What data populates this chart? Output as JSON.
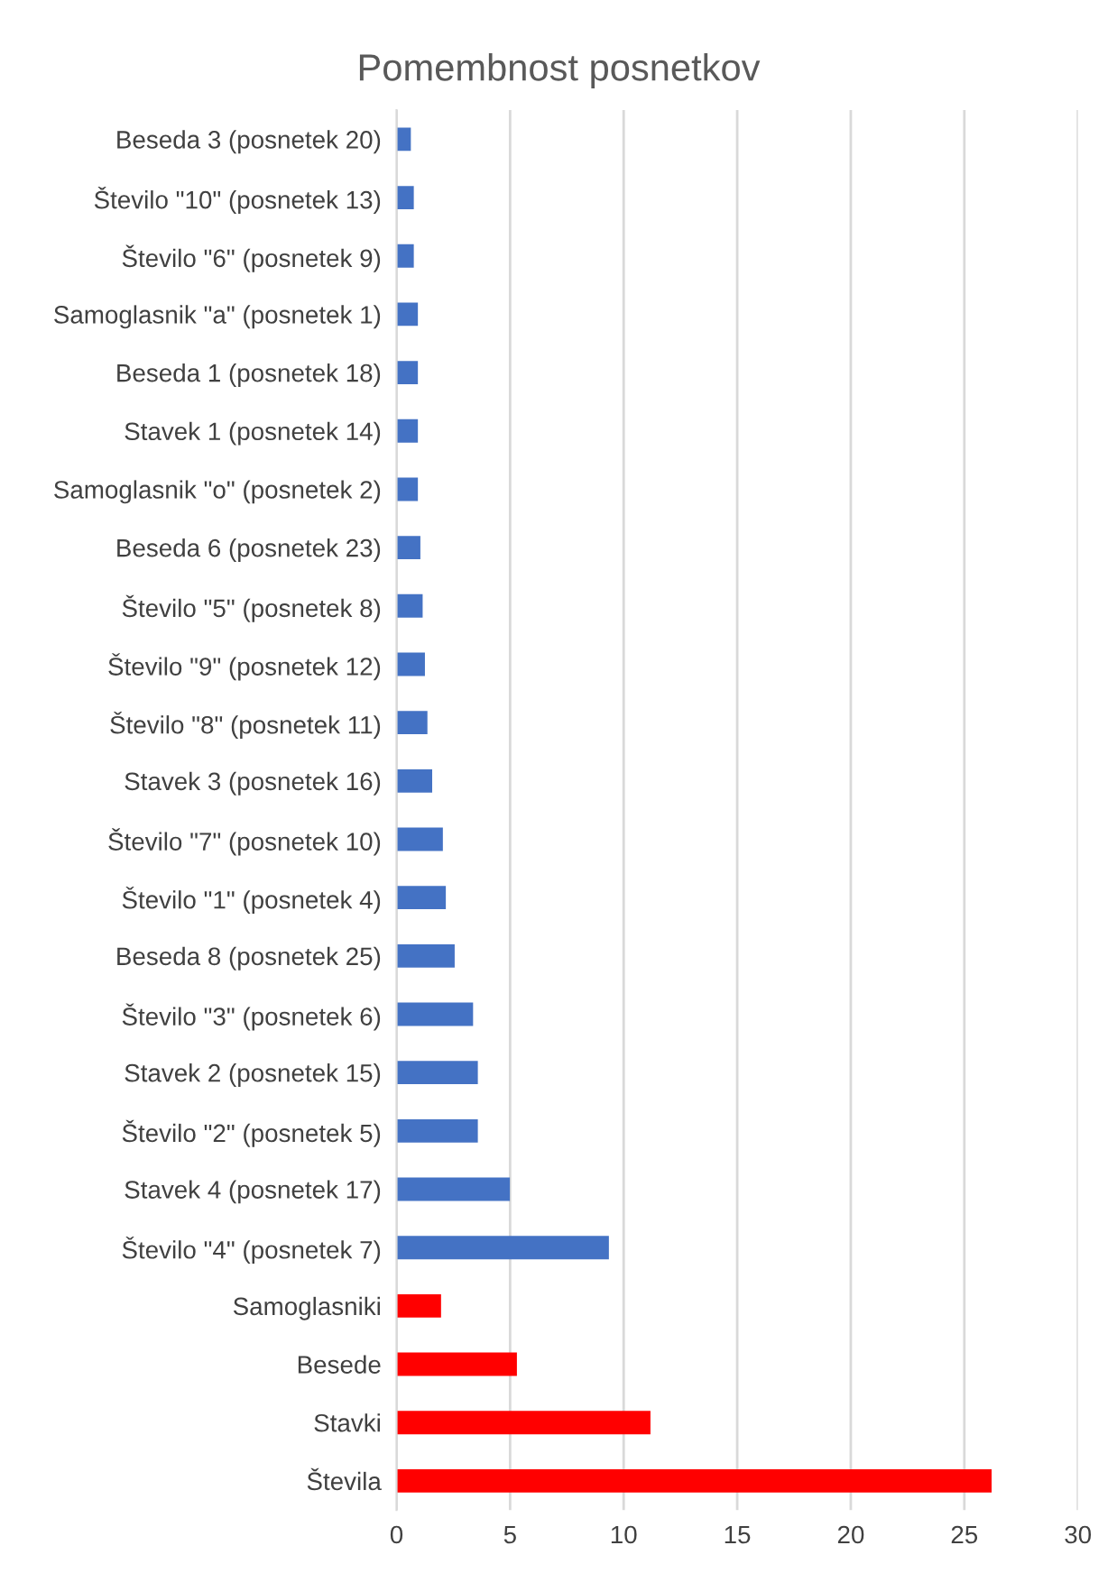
{
  "chart_data": {
    "type": "bar",
    "orientation": "horizontal",
    "title": "Pomembnost posnetkov",
    "categories": [
      "Beseda 3 (posnetek 20)",
      "Število \"10\" (posnetek 13)",
      "Število \"6\" (posnetek 9)",
      "Samoglasnik \"a\" (posnetek 1)",
      "Beseda 1 (posnetek 18)",
      "Stavek 1 (posnetek 14)",
      "Samoglasnik \"o\" (posnetek 2)",
      "Beseda 6 (posnetek 23)",
      "Število \"5\" (posnetek 8)",
      "Število \"9\" (posnetek 12)",
      "Število \"8\" (posnetek 11)",
      "Stavek 3 (posnetek 16)",
      "Število \"7\" (posnetek 10)",
      "Število \"1\" (posnetek 4)",
      "Beseda 8 (posnetek 25)",
      "Število \"3\" (posnetek 6)",
      "Stavek 2 (posnetek 15)",
      "Število \"2\" (posnetek 5)",
      "Stavek 4 (posnetek 17)",
      "Število \"4\" (posnetek 7)",
      "Samoglasniki",
      "Besede",
      "Stavki",
      "Števila"
    ],
    "values": [
      0.63,
      0.76,
      0.76,
      0.94,
      0.94,
      0.94,
      0.94,
      1.05,
      1.15,
      1.25,
      1.36,
      1.57,
      2.04,
      2.17,
      2.56,
      3.37,
      3.58,
      3.58,
      4.99,
      9.35,
      1.96,
      5.3,
      11.18,
      26.2
    ],
    "colors": [
      "#4472c4",
      "#4472c4",
      "#4472c4",
      "#4472c4",
      "#4472c4",
      "#4472c4",
      "#4472c4",
      "#4472c4",
      "#4472c4",
      "#4472c4",
      "#4472c4",
      "#4472c4",
      "#4472c4",
      "#4472c4",
      "#4472c4",
      "#4472c4",
      "#4472c4",
      "#4472c4",
      "#4472c4",
      "#4472c4",
      "#ff0000",
      "#ff0000",
      "#ff0000",
      "#ff0000"
    ],
    "xlim": [
      0,
      30
    ],
    "xticks": [
      0,
      5,
      10,
      15,
      20,
      25,
      30
    ],
    "grid": "x"
  }
}
